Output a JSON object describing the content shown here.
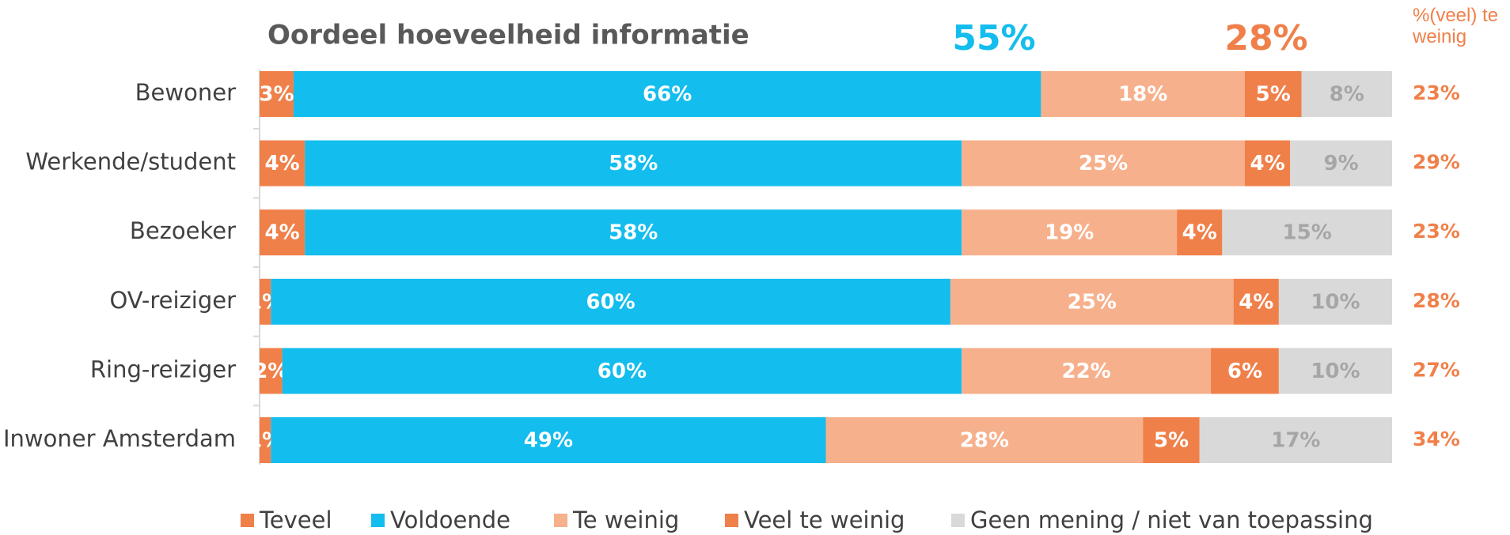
{
  "chart_data": {
    "type": "stacked-barh",
    "title": "Oordeel hoeveelheid informatie",
    "annotations": [
      {
        "text": "55%",
        "color": "#13bdee"
      },
      {
        "text": "28%",
        "color": "#f0804a"
      }
    ],
    "categories": [
      "Bewoner",
      "Werkende/student",
      "Bezoeker",
      "OV-reiziger",
      "Ring-reiziger",
      "Inwoner Amsterdam"
    ],
    "xlim": [
      0,
      100
    ],
    "series": [
      {
        "name": "Teveel",
        "color": "#f0804a",
        "label_color": "#ffffff",
        "values": [
          3,
          4,
          4,
          1,
          2,
          1
        ],
        "value_labels": [
          "3%",
          "4%",
          "4%",
          "1%",
          "2%",
          "1%"
        ]
      },
      {
        "name": "Voldoende",
        "color": "#13bdee",
        "label_color": "#ffffff",
        "values": [
          66,
          58,
          58,
          60,
          60,
          49
        ],
        "value_labels": [
          "66%",
          "58%",
          "58%",
          "60%",
          "60%",
          "49%"
        ]
      },
      {
        "name": "Te weinig",
        "color": "#f7b08c",
        "label_color": "#ffffff",
        "values": [
          18,
          25,
          19,
          25,
          22,
          28
        ],
        "value_labels": [
          "18%",
          "25%",
          "19%",
          "25%",
          "22%",
          "28%"
        ]
      },
      {
        "name": "Veel te weinig",
        "color": "#f0804a",
        "label_color": "#ffffff",
        "values": [
          5,
          4,
          4,
          4,
          6,
          5
        ],
        "value_labels": [
          "5%",
          "4%",
          "4%",
          "4%",
          "6%",
          "5%"
        ]
      },
      {
        "name": "Geen mening / niet van toepassing",
        "color": "#d9d9d9",
        "label_color": "#a6a6a6",
        "values": [
          8,
          9,
          15,
          10,
          10,
          17
        ],
        "value_labels": [
          "8%",
          "9%",
          "15%",
          "10%",
          "10%",
          "17%"
        ]
      }
    ],
    "summary": {
      "title": "%(veel) te weinig",
      "values": [
        23,
        29,
        23,
        28,
        27,
        34
      ],
      "value_labels": [
        "23%",
        "29%",
        "23%",
        "28%",
        "27%",
        "34%"
      ]
    }
  }
}
